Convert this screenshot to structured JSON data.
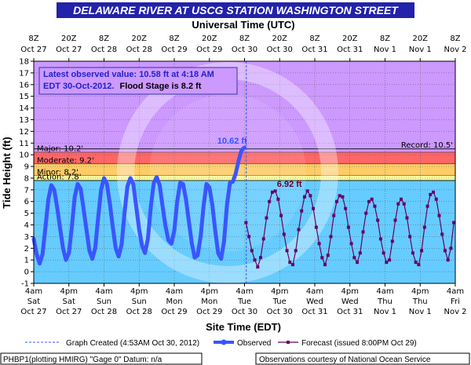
{
  "chart_data": {
    "type": "line",
    "title": "DELAWARE RIVER AT USCG STATION WASHINGTON STREET",
    "top_axis_title": "Universal Time (UTC)",
    "xlabel": "Site Time (EDT)",
    "ylabel": "Tide Height (ft)",
    "ylim": [
      -1,
      18
    ],
    "yticks": [
      -1,
      0,
      1,
      2,
      3,
      4,
      5,
      6,
      7,
      8,
      9,
      10,
      11,
      12,
      13,
      14,
      15,
      16,
      17,
      18
    ],
    "xlim_hours": [
      0,
      144
    ],
    "bottom_ticks": [
      {
        "t": 0,
        "l1": "4am",
        "l2": "Sat",
        "l3": "Oct 27"
      },
      {
        "t": 12,
        "l1": "4pm",
        "l2": "Sat",
        "l3": "Oct 27"
      },
      {
        "t": 24,
        "l1": "4am",
        "l2": "Sun",
        "l3": "Oct 28"
      },
      {
        "t": 36,
        "l1": "4pm",
        "l2": "Sun",
        "l3": "Oct 28"
      },
      {
        "t": 48,
        "l1": "4am",
        "l2": "Mon",
        "l3": "Oct 29"
      },
      {
        "t": 60,
        "l1": "4pm",
        "l2": "Mon",
        "l3": "Oct 29"
      },
      {
        "t": 72,
        "l1": "4am",
        "l2": "Tue",
        "l3": "Oct 30"
      },
      {
        "t": 84,
        "l1": "4pm",
        "l2": "Tue",
        "l3": "Oct 30"
      },
      {
        "t": 96,
        "l1": "4am",
        "l2": "Wed",
        "l3": "Oct 31"
      },
      {
        "t": 108,
        "l1": "4pm",
        "l2": "Wed",
        "l3": "Oct 31"
      },
      {
        "t": 120,
        "l1": "4am",
        "l2": "Thu",
        "l3": "Nov 1"
      },
      {
        "t": 132,
        "l1": "4pm",
        "l2": "Thu",
        "l3": "Nov 1"
      },
      {
        "t": 144,
        "l1": "4am",
        "l2": "Fri",
        "l3": "Nov 2"
      }
    ],
    "top_ticks": [
      {
        "t": 0,
        "l1": "8Z",
        "l2": "Oct 27"
      },
      {
        "t": 12,
        "l1": "20Z",
        "l2": "Oct 27"
      },
      {
        "t": 24,
        "l1": "8Z",
        "l2": "Oct 28"
      },
      {
        "t": 36,
        "l1": "20Z",
        "l2": "Oct 28"
      },
      {
        "t": 48,
        "l1": "8Z",
        "l2": "Oct 29"
      },
      {
        "t": 60,
        "l1": "20Z",
        "l2": "Oct 29"
      },
      {
        "t": 72,
        "l1": "8Z",
        "l2": "Oct 30"
      },
      {
        "t": 84,
        "l1": "20Z",
        "l2": "Oct 30"
      },
      {
        "t": 96,
        "l1": "8Z",
        "l2": "Oct 31"
      },
      {
        "t": 108,
        "l1": "20Z",
        "l2": "Oct 31"
      },
      {
        "t": 120,
        "l1": "8Z",
        "l2": "Nov 1"
      },
      {
        "t": 132,
        "l1": "20Z",
        "l2": "Nov 1"
      },
      {
        "t": 144,
        "l1": "8Z",
        "l2": "Nov 2"
      }
    ],
    "flood_categories": [
      {
        "label": "Major: 10.2'",
        "from": 10.2,
        "to": 18,
        "color": "#cc99ff"
      },
      {
        "label": "Moderate: 9.2'",
        "from": 9.2,
        "to": 10.2,
        "color": "#ff6666"
      },
      {
        "label": "Minor: 8.2'",
        "from": 8.2,
        "to": 9.2,
        "color": "#ffcc66"
      },
      {
        "label": "Action: 7.8'",
        "from": 7.8,
        "to": 8.2,
        "color": "#ffff99"
      }
    ],
    "record": {
      "label": "Record: 10.5'",
      "value": 10.5
    },
    "latest_box": {
      "line1": "Latest observed value: 10.58 ft at 4:18 AM",
      "line2": "EDT 30-Oct-2012.",
      "line3": "Flood Stage is 8.2 ft"
    },
    "annotations": [
      {
        "text": "10.62 ft",
        "t": 71,
        "y": 10.62,
        "color": "#3355ff"
      },
      {
        "text": "6.92 ft",
        "t": 82,
        "y": 6.92,
        "color": "#660033"
      }
    ],
    "graph_created_t": 72.6,
    "series": [
      {
        "name": "Observed",
        "color": "#3a55ff",
        "t": [
          0,
          1,
          2,
          3,
          4,
          5,
          6,
          7,
          8,
          9,
          10,
          11,
          12,
          13,
          14,
          15,
          16,
          17,
          18,
          19,
          20,
          21,
          22,
          23,
          24,
          25,
          26,
          27,
          28,
          29,
          30,
          31,
          32,
          33,
          34,
          35,
          36,
          37,
          38,
          39,
          40,
          41,
          42,
          43,
          44,
          45,
          46,
          47,
          48,
          49,
          50,
          51,
          52,
          53,
          54,
          55,
          56,
          57,
          58,
          59,
          60,
          61,
          62,
          63,
          64,
          65,
          66,
          67,
          68,
          69,
          70,
          71,
          72
        ],
        "y": [
          2.8,
          1.5,
          0.7,
          1.5,
          3.8,
          6.2,
          7.4,
          7.0,
          5.5,
          3.7,
          2.0,
          1.0,
          1.6,
          3.8,
          6.4,
          7.5,
          7.1,
          5.4,
          3.6,
          1.8,
          1.1,
          2.0,
          4.6,
          7.0,
          8.0,
          7.5,
          5.8,
          3.8,
          2.0,
          1.3,
          2.3,
          5.0,
          7.3,
          8.0,
          7.5,
          5.6,
          3.6,
          2.2,
          1.6,
          2.8,
          5.6,
          7.6,
          8.1,
          7.4,
          5.6,
          3.9,
          2.7,
          2.4,
          3.5,
          6.0,
          7.6,
          7.5,
          6.2,
          4.3,
          2.4,
          1.2,
          1.4,
          3.0,
          5.6,
          7.5,
          7.2,
          5.7,
          3.5,
          1.6,
          1.1,
          2.6,
          5.7,
          7.6,
          7.7,
          8.4,
          9.5,
          10.4,
          10.62
        ]
      },
      {
        "name": "Forecast (issued 8:00PM Oct 29)",
        "color": "#660066",
        "t": [
          72.5,
          73.5,
          74.5,
          75.5,
          76.5,
          77.5,
          78.5,
          79.5,
          80.5,
          81.5,
          82.5,
          83.5,
          84.5,
          85.5,
          86.5,
          87.5,
          88.5,
          89.5,
          90.5,
          91.5,
          92.5,
          93.5,
          94.5,
          95.5,
          96.5,
          97.5,
          98.5,
          99.5,
          100.5,
          101.5,
          102.5,
          103.5,
          104.5,
          105.5,
          106.5,
          107.5,
          108.5,
          109.5,
          110.5,
          111.5,
          112.5,
          113.5,
          114.5,
          115.5,
          116.5,
          117.5,
          118.5,
          119.5,
          120.5,
          121.5,
          122.5,
          123.5,
          124.5,
          125.5,
          126.5,
          127.5,
          128.5,
          129.5,
          130.5,
          131.5,
          132.5,
          133.5,
          134.5,
          135.5,
          136.5,
          137.5,
          138.5,
          139.5,
          140.5,
          141.5,
          142.5,
          143.5
        ],
        "y": [
          4.2,
          3.0,
          1.8,
          1.0,
          0.4,
          1.2,
          2.8,
          4.6,
          6.0,
          6.8,
          6.9,
          6.2,
          4.8,
          3.2,
          1.8,
          0.8,
          0.6,
          1.8,
          3.6,
          5.2,
          6.4,
          6.9,
          6.5,
          5.4,
          3.8,
          2.4,
          1.2,
          0.6,
          1.4,
          3.0,
          4.8,
          6.0,
          6.5,
          6.4,
          5.4,
          3.8,
          2.4,
          1.2,
          0.8,
          1.6,
          3.4,
          5.0,
          6.0,
          6.2,
          5.6,
          4.4,
          2.8,
          1.6,
          0.8,
          1.0,
          2.6,
          4.4,
          5.8,
          6.2,
          5.8,
          4.6,
          3.0,
          1.6,
          0.8,
          0.6,
          1.8,
          3.8,
          5.6,
          6.6,
          6.8,
          6.2,
          4.8,
          3.2,
          1.8,
          1.0,
          2.0,
          4.2
        ]
      }
    ]
  },
  "legend": {
    "graph_created": "Graph Created (4:53AM Oct 30, 2012)",
    "observed": "Observed",
    "forecast": "Forecast (issued 8:00PM Oct 29)"
  },
  "footer": {
    "left": "PHBP1(plotting HMIRG) \"Gage 0\" Datum: n/a",
    "right": "Observations courtesy of National Ocean Service"
  },
  "colors": {
    "title_bg": "#2222aa",
    "plot_bg": "#66ccff",
    "observed": "#3a55ff",
    "forecast": "#660066"
  }
}
